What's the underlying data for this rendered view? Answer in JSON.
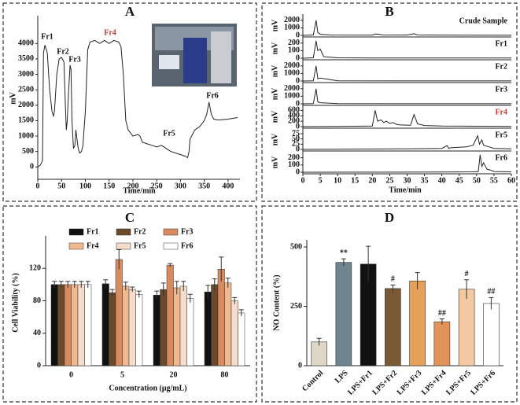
{
  "chart_data": [
    {
      "type": "line",
      "panel": "A",
      "xlabel": "Time/min",
      "ylabel": "mV",
      "color": "#222222",
      "xlim": [
        0,
        425
      ],
      "xticks": [
        0,
        50,
        100,
        150,
        200,
        250,
        300,
        350,
        400
      ],
      "ylim": [
        -400,
        4900
      ],
      "yticks": [
        0,
        500,
        1000,
        1500,
        2000,
        2500,
        3000,
        3500,
        4000
      ],
      "x": [
        0,
        5,
        10,
        12,
        15,
        20,
        25,
        30,
        33,
        35,
        40,
        45,
        50,
        55,
        58,
        60,
        62,
        65,
        68,
        70,
        72,
        75,
        78,
        80,
        85,
        88,
        92,
        95,
        100,
        105,
        110,
        120,
        130,
        140,
        150,
        160,
        170,
        175,
        180,
        185,
        190,
        200,
        210,
        215,
        220,
        230,
        240,
        250,
        260,
        270,
        280,
        290,
        300,
        310,
        315,
        318,
        320,
        330,
        340,
        350,
        355,
        360,
        365,
        370,
        380,
        400,
        420
      ],
      "values": [
        0,
        50,
        200,
        3700,
        3950,
        3700,
        2500,
        1800,
        1650,
        1800,
        3000,
        3500,
        3550,
        3400,
        2000,
        1200,
        1500,
        2500,
        3300,
        3150,
        1500,
        600,
        700,
        1200,
        600,
        450,
        500,
        700,
        1800,
        3800,
        4050,
        4100,
        4000,
        4100,
        4000,
        4100,
        4050,
        3900,
        3000,
        1500,
        1200,
        1000,
        1050,
        1000,
        800,
        750,
        700,
        650,
        700,
        600,
        500,
        450,
        400,
        350,
        300,
        500,
        900,
        1200,
        1300,
        1500,
        1700,
        2100,
        1700,
        1550,
        1520,
        1550,
        1600
      ],
      "annotations": [
        "Fr1",
        "Fr2",
        "Fr3",
        "Fr4",
        "Fr5",
        "Fr6"
      ],
      "annotation_colors": [
        "#111111",
        "#111111",
        "#111111",
        "#c0392b",
        "#111111",
        "#111111"
      ]
    },
    {
      "type": "stack",
      "panel": "B",
      "xlabel": "Time/min",
      "color": "#222222",
      "xlim": [
        0,
        60
      ],
      "xticks": [
        0,
        5,
        10,
        15,
        20,
        25,
        30,
        35,
        40,
        45,
        50,
        55,
        60
      ],
      "traces": [
        {
          "label": "Crude Sample",
          "ylabel": "mV",
          "label_color": "#111111",
          "ylim": [
            0,
            2500
          ],
          "yticks": [
            0,
            1000,
            2000
          ],
          "x": [
            0,
            3,
            3.8,
            4.3,
            5,
            8,
            20,
            21,
            23,
            30,
            32,
            33,
            40,
            50,
            60
          ],
          "values": [
            0,
            50,
            2000,
            400,
            150,
            50,
            40,
            200,
            60,
            50,
            220,
            60,
            40,
            30,
            30
          ]
        },
        {
          "label": "Fr1",
          "ylabel": "mV",
          "label_color": "#111111",
          "ylim": [
            0,
            250
          ],
          "yticks": [
            0,
            100,
            200
          ],
          "x": [
            0,
            3,
            3.8,
            4.3,
            5,
            6,
            10,
            20,
            60
          ],
          "values": [
            0,
            5,
            230,
            100,
            120,
            20,
            5,
            3,
            3
          ]
        },
        {
          "label": "Fr2",
          "ylabel": "mV",
          "label_color": "#111111",
          "ylim": [
            0,
            2500
          ],
          "yticks": [
            0,
            1000,
            2000
          ],
          "x": [
            0,
            3,
            3.8,
            4.3,
            5,
            10,
            60
          ],
          "values": [
            0,
            20,
            2000,
            300,
            400,
            20,
            10
          ]
        },
        {
          "label": "Fr3",
          "ylabel": "mV",
          "label_color": "#111111",
          "ylim": [
            0,
            2500
          ],
          "yticks": [
            0,
            1000,
            2000
          ],
          "x": [
            0,
            3,
            3.8,
            4.3,
            5,
            10,
            60
          ],
          "values": [
            0,
            20,
            2000,
            250,
            150,
            20,
            10
          ]
        },
        {
          "label": "Fr4",
          "ylabel": "mV",
          "label_color": "#c0392b",
          "ylim": [
            0,
            700
          ],
          "yticks": [
            0,
            200,
            400,
            600
          ],
          "x": [
            0,
            10,
            20,
            20.8,
            21.5,
            22.5,
            23.3,
            24,
            25,
            26,
            27,
            28,
            31,
            32,
            33,
            35,
            40,
            60
          ],
          "values": [
            0,
            5,
            20,
            600,
            200,
            250,
            150,
            200,
            120,
            150,
            80,
            60,
            50,
            450,
            100,
            40,
            20,
            10
          ]
        },
        {
          "label": "Fr5",
          "ylabel": "mV",
          "label_color": "#111111",
          "ylim": [
            0,
            90
          ],
          "yticks": [
            0,
            25,
            50,
            75
          ],
          "x": [
            0,
            20,
            30,
            40,
            41.5,
            42,
            42.5,
            45,
            47,
            49,
            50.3,
            50.8,
            51.5,
            52,
            54,
            55,
            60
          ],
          "values": [
            0,
            2,
            3,
            5,
            18,
            5,
            8,
            10,
            12,
            20,
            65,
            25,
            45,
            20,
            10,
            5,
            3
          ]
        },
        {
          "label": "Fr6",
          "ylabel": "mV",
          "label_color": "#111111",
          "ylim": [
            0,
            260
          ],
          "yticks": [
            0,
            100,
            200
          ],
          "x": [
            0,
            40,
            49,
            50.5,
            51,
            51.5,
            52,
            53,
            54,
            55,
            60
          ],
          "values": [
            0,
            2,
            5,
            10,
            240,
            80,
            130,
            40,
            30,
            10,
            5
          ]
        }
      ]
    },
    {
      "type": "bar",
      "panel": "C",
      "xlabel": "Concentration (μg/mL)",
      "ylabel": "Cell Viability (%)",
      "categories": [
        "0",
        "5",
        "20",
        "80"
      ],
      "ylim": [
        0,
        160
      ],
      "yticks": [
        0,
        40,
        80,
        120
      ],
      "series": [
        {
          "name": "Fr1",
          "color": "#111111",
          "values": [
            100,
            101,
            87,
            91
          ],
          "errors": [
            4,
            5,
            5,
            8
          ]
        },
        {
          "name": "Fr2",
          "color": "#6b4a2b",
          "values": [
            100,
            90,
            94,
            100
          ],
          "errors": [
            4,
            4,
            8,
            7
          ]
        },
        {
          "name": "Fr3",
          "color": "#d98b5f",
          "values": [
            100,
            131,
            124,
            119
          ],
          "errors": [
            4,
            12,
            2,
            15
          ]
        },
        {
          "name": "Fr4",
          "color": "#f0b98f",
          "values": [
            100,
            98,
            96,
            102
          ],
          "errors": [
            4,
            5,
            8,
            6
          ]
        },
        {
          "name": "Fr5",
          "color": "#f6ddcb",
          "values": [
            100,
            94,
            98,
            80
          ],
          "errors": [
            4,
            3,
            6,
            4
          ]
        },
        {
          "name": "Fr6",
          "color": "#ffffff",
          "values": [
            100,
            88,
            83,
            65
          ],
          "errors": [
            4,
            4,
            5,
            4
          ]
        }
      ]
    },
    {
      "type": "bar",
      "panel": "D",
      "ylabel": "NO Content (%)",
      "categories": [
        "Control",
        "LPS",
        "LPS+Fr1",
        "LPS+Fr2",
        "LPS+Fr3",
        "LPS+Fr4",
        "LPS+Fr5",
        "LPS+Fr6"
      ],
      "colors": [
        "#ddd7c8",
        "#6e8590",
        "#111111",
        "#7a5a34",
        "#e5a15a",
        "#e3935a",
        "#f2c9a0",
        "#ffffff"
      ],
      "values": [
        100,
        435,
        428,
        325,
        357,
        185,
        322,
        262
      ],
      "errors": [
        15,
        15,
        75,
        15,
        35,
        12,
        40,
        25
      ],
      "significance": [
        null,
        "**",
        null,
        "#",
        null,
        "##",
        "#",
        "##"
      ],
      "ylim": [
        0,
        530
      ],
      "yticks": [
        0,
        250,
        500
      ]
    }
  ]
}
